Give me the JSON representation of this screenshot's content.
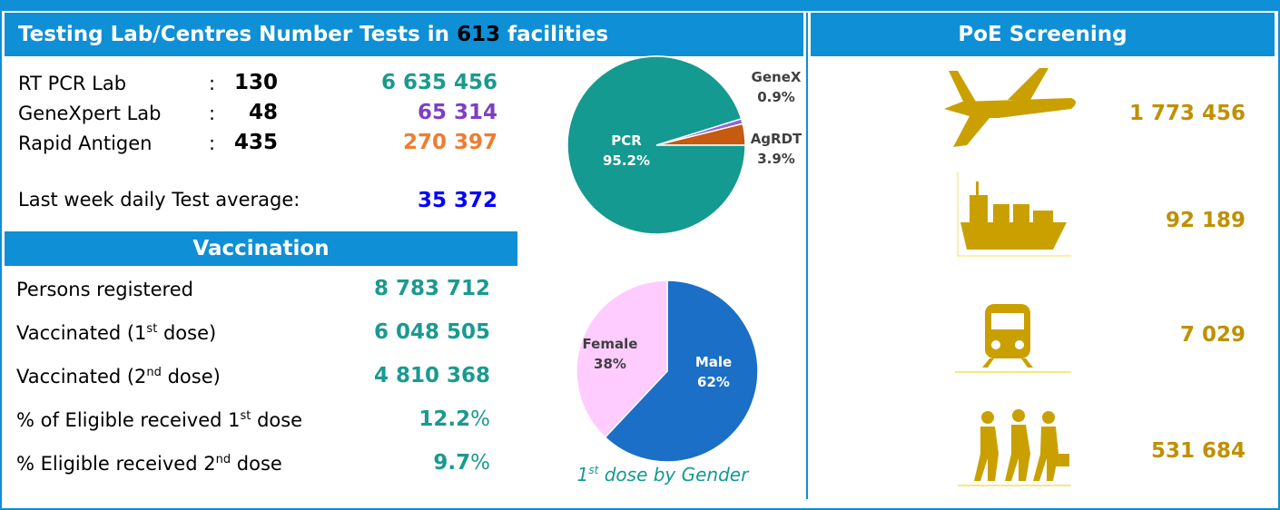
{
  "testing": {
    "title_start": "Testing Lab/Centres Number Tests in",
    "facilities": "613",
    "title_end": "facilities",
    "separator": ":",
    "rows": [
      {
        "label": "RT PCR Lab",
        "count": 130,
        "tests": "6 635 456"
      },
      {
        "label": "GeneXpert Lab",
        "count": 48,
        "tests": "65 314"
      },
      {
        "label": "Rapid Antigen",
        "count": 435,
        "tests": "270 397"
      }
    ],
    "average_label": "Last week daily Test average:",
    "average_value": "35 372"
  },
  "vaccination": {
    "title": "Vaccination",
    "rows": [
      {
        "label": "Persons registered",
        "value": "8 783 712"
      },
      {
        "label": "Vaccinated (1",
        "sup": "st",
        "label_end": " dose)",
        "value": "6 048 505"
      },
      {
        "label": "Vaccinated (2",
        "sup": "nd",
        "label_end": " dose)",
        "value": "4 810 368"
      },
      {
        "label": "% of Eligible received 1",
        "sup": "st",
        "label_end": " dose",
        "value": "12.2",
        "unit": "%"
      },
      {
        "label": "% Eligible received 2",
        "sup": "nd",
        "label_end": " dose",
        "value": "9.7",
        "unit": "%"
      }
    ]
  },
  "chart_data": [
    {
      "type": "pie",
      "categories": [
        "PCR",
        "GeneX",
        "AgRDT"
      ],
      "values": [
        95.2,
        0.9,
        3.9
      ],
      "value_labels": [
        "95.2%",
        "0.9%",
        "3.9%"
      ],
      "colors": [
        "#149a90",
        "#8e63d6",
        "#c55a11"
      ]
    },
    {
      "type": "pie",
      "categories": [
        "Female",
        "Male"
      ],
      "values": [
        38,
        62
      ],
      "value_labels": [
        "38%",
        "62%"
      ],
      "colors": [
        "#ffccff",
        "#1b6fc6"
      ],
      "caption_start": "1",
      "caption_sup": "st",
      "caption_end": " dose by Gender"
    }
  ],
  "poe": {
    "title": "PoE Screening",
    "values": [
      "1 773 456",
      "92 189",
      "7 029",
      "531 684"
    ]
  }
}
